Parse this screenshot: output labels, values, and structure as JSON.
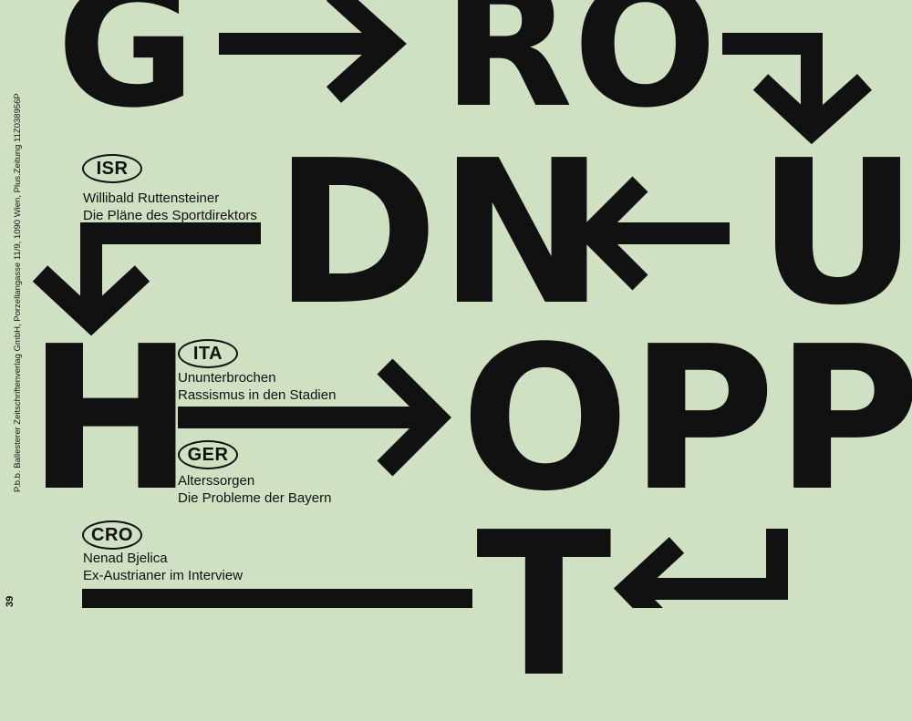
{
  "page": {
    "background_color": "#cfe0c3",
    "ink_color": "#111111",
    "imprint": "P.b.b. Ballesterer Zeitschriftenverlag GmbH, Porzellangasse 11/9, 1090 Wien, Plus.Zeitung 11Z038956P",
    "page_number": "39"
  },
  "letters": {
    "row1_g": "G",
    "row1_ro": "RO",
    "row2_dn": "DN",
    "row2_u": "U",
    "row3_h": "H",
    "row3_opp": "OPP",
    "row4_t": "T"
  },
  "stories": [
    {
      "code": "ISR",
      "line1": "Willibald Ruttensteiner",
      "line2": "Die Pläne des Sportdirektors"
    },
    {
      "code": "ITA",
      "line1": "Ununterbrochen",
      "line2": "Rassismus in den Stadien"
    },
    {
      "code": "GER",
      "line1": "Alterssorgen",
      "line2": "Die Probleme der Bayern"
    },
    {
      "code": "CRO",
      "line1": "Nenad Bjelica",
      "line2": "Ex-Austrianer im Interview"
    }
  ],
  "icons": [
    "arrow-right-icon",
    "arrow-down-corner-icon",
    "arrow-left-icon",
    "arrow-down-left-corner-icon",
    "arrow-right-icon",
    "arrow-up-corner-icon"
  ]
}
